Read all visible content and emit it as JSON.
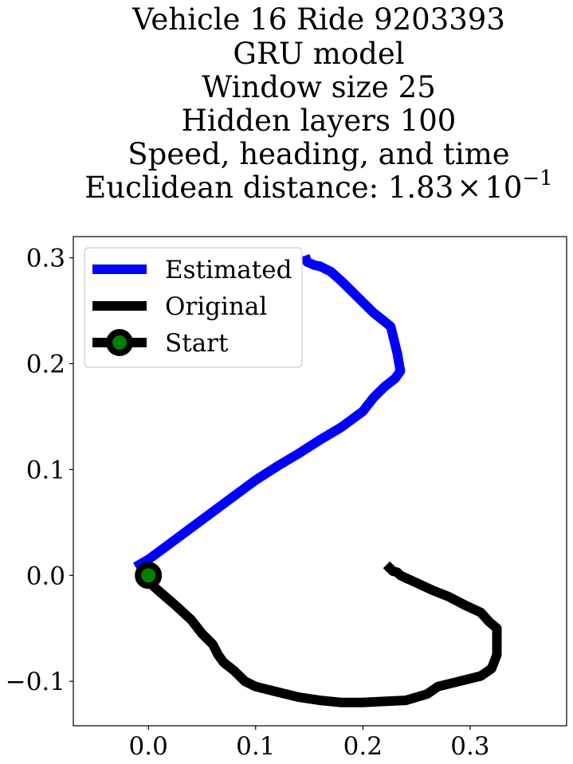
{
  "chart_data": {
    "type": "line",
    "title_lines": [
      "Vehicle 16 Ride 9203393",
      "GRU model",
      "Window size 25",
      "Hidden layers 100",
      "Speed, heading, and time"
    ],
    "title_last_prefix": "Euclidean distance: ",
    "title_last_mantissa": "1.83",
    "title_last_times": "×",
    "title_last_base": "10",
    "title_last_exponent": "−1",
    "xlabel": "",
    "ylabel": "",
    "xlim": [
      -0.07,
      0.39
    ],
    "ylim": [
      -0.142,
      0.32
    ],
    "x_ticks": [
      {
        "value": 0.0,
        "label": "0.0"
      },
      {
        "value": 0.1,
        "label": "0.1"
      },
      {
        "value": 0.2,
        "label": "0.2"
      },
      {
        "value": 0.3,
        "label": "0.3"
      }
    ],
    "y_ticks": [
      {
        "value": -0.1,
        "label": "−0.1"
      },
      {
        "value": 0.0,
        "label": "0.0"
      },
      {
        "value": 0.1,
        "label": "0.1"
      },
      {
        "value": 0.2,
        "label": "0.2"
      },
      {
        "value": 0.3,
        "label": "0.3"
      }
    ],
    "legend_position": "upper-left",
    "series": [
      {
        "name": "Estimated",
        "color": "#0000ff",
        "points": [
          [
            -0.012,
            0.008
          ],
          [
            0.0,
            0.015
          ],
          [
            0.02,
            0.03
          ],
          [
            0.04,
            0.045
          ],
          [
            0.06,
            0.06
          ],
          [
            0.08,
            0.075
          ],
          [
            0.1,
            0.09
          ],
          [
            0.12,
            0.103
          ],
          [
            0.14,
            0.115
          ],
          [
            0.16,
            0.128
          ],
          [
            0.18,
            0.14
          ],
          [
            0.2,
            0.155
          ],
          [
            0.21,
            0.168
          ],
          [
            0.22,
            0.178
          ],
          [
            0.23,
            0.186
          ],
          [
            0.235,
            0.193
          ],
          [
            0.232,
            0.21
          ],
          [
            0.226,
            0.235
          ],
          [
            0.22,
            0.24
          ],
          [
            0.21,
            0.248
          ],
          [
            0.2,
            0.258
          ],
          [
            0.19,
            0.268
          ],
          [
            0.18,
            0.278
          ],
          [
            0.17,
            0.287
          ],
          [
            0.16,
            0.292
          ],
          [
            0.155,
            0.293
          ],
          [
            0.148,
            0.296
          ],
          [
            0.146,
            0.302
          ]
        ]
      },
      {
        "name": "Original",
        "color": "#000000",
        "points": [
          [
            0.0,
            0.0
          ],
          [
            -0.003,
            -0.003
          ],
          [
            0.01,
            -0.015
          ],
          [
            0.025,
            -0.028
          ],
          [
            0.04,
            -0.042
          ],
          [
            0.05,
            -0.055
          ],
          [
            0.06,
            -0.065
          ],
          [
            0.065,
            -0.075
          ],
          [
            0.07,
            -0.082
          ],
          [
            0.08,
            -0.09
          ],
          [
            0.09,
            -0.1
          ],
          [
            0.1,
            -0.105
          ],
          [
            0.12,
            -0.11
          ],
          [
            0.14,
            -0.115
          ],
          [
            0.16,
            -0.118
          ],
          [
            0.18,
            -0.12
          ],
          [
            0.2,
            -0.12
          ],
          [
            0.22,
            -0.119
          ],
          [
            0.24,
            -0.118
          ],
          [
            0.26,
            -0.112
          ],
          [
            0.27,
            -0.105
          ],
          [
            0.29,
            -0.1
          ],
          [
            0.31,
            -0.095
          ],
          [
            0.32,
            -0.088
          ],
          [
            0.325,
            -0.075
          ],
          [
            0.325,
            -0.05
          ],
          [
            0.318,
            -0.044
          ],
          [
            0.31,
            -0.035
          ],
          [
            0.295,
            -0.028
          ],
          [
            0.28,
            -0.02
          ],
          [
            0.265,
            -0.014
          ],
          [
            0.25,
            -0.007
          ],
          [
            0.235,
            0.0
          ],
          [
            0.232,
            0.003
          ],
          [
            0.228,
            0.004
          ],
          [
            0.226,
            0.006
          ],
          [
            0.222,
            0.01
          ]
        ]
      }
    ],
    "start": {
      "name": "Start",
      "point": [
        0.0,
        0.0
      ],
      "marker_edge_color": "#000000",
      "marker_face_color": "#008000"
    }
  }
}
